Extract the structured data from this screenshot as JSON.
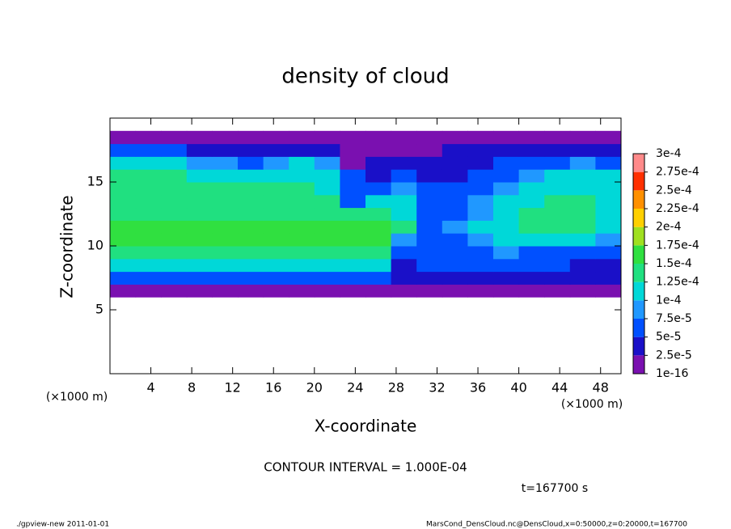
{
  "chart_data": {
    "type": "heatmap",
    "title": "density of cloud",
    "x_label": "X-coordinate",
    "y_label": "Z-coordinate",
    "x_unit": "(×1000 m)",
    "y_unit": "(×1000 m)",
    "contour_note": "CONTOUR INTERVAL = 1.000E-04",
    "time_note": "t=167700 s",
    "footer_left": "./gpview-new  2011-01-01",
    "footer_right": "MarsCond_DensCloud.nc@DensCloud,x=0:50000,z=0:20000,t=167700",
    "xlim": [
      0,
      50
    ],
    "ylim": [
      0,
      20
    ],
    "xticks": [
      4,
      8,
      12,
      16,
      20,
      24,
      28,
      32,
      36,
      40,
      44,
      48
    ],
    "yticks": [
      5,
      10,
      15
    ],
    "x": [
      1.25,
      3.75,
      6.25,
      8.75,
      11.25,
      13.75,
      16.25,
      18.75,
      21.25,
      23.75,
      26.25,
      28.75,
      31.25,
      33.75,
      36.25,
      38.75,
      41.25,
      43.75,
      46.25,
      48.75
    ],
    "y": [
      6.5,
      7.5,
      8.5,
      9.5,
      10.5,
      11.5,
      12.5,
      13.5,
      14.5,
      15.5,
      16.5,
      17.5,
      18.5
    ],
    "values": [
      [
        2e-05,
        2e-05,
        2e-05,
        2e-05,
        2e-05,
        2e-05,
        2e-05,
        2e-05,
        2e-05,
        2e-05,
        2e-05,
        1e-05,
        1e-05,
        1e-05,
        1e-05,
        1e-05,
        1e-05,
        1e-05,
        1e-05,
        1e-05
      ],
      [
        6e-05,
        6e-05,
        6e-05,
        6e-05,
        6e-05,
        6e-05,
        6e-05,
        6e-05,
        6e-05,
        6e-05,
        5e-05,
        3e-05,
        3e-05,
        4e-05,
        4e-05,
        4e-05,
        4e-05,
        4e-05,
        3e-05,
        3e-05
      ],
      [
        0.00011,
        0.00011,
        0.00011,
        0.00011,
        0.00011,
        0.00011,
        0.00011,
        0.00011,
        0.00011,
        0.00012,
        0.0001,
        4e-05,
        5e-05,
        5e-05,
        5e-05,
        6e-05,
        5e-05,
        5e-05,
        4e-05,
        4e-05
      ],
      [
        0.000145,
        0.000145,
        0.000145,
        0.000145,
        0.000145,
        0.000145,
        0.000145,
        0.000145,
        0.000145,
        0.000145,
        0.00013,
        6e-05,
        6e-05,
        6e-05,
        7e-05,
        8e-05,
        7e-05,
        7e-05,
        6e-05,
        5e-05
      ],
      [
        0.00015,
        0.00015,
        0.00015,
        0.00015,
        0.00015,
        0.00015,
        0.00015,
        0.00015,
        0.00015,
        0.00015,
        0.00015,
        9e-05,
        6e-05,
        7e-05,
        9e-05,
        0.00011,
        0.00012,
        0.00012,
        0.00011,
        8e-05
      ],
      [
        0.00015,
        0.00015,
        0.00015,
        0.00015,
        0.00015,
        0.00015,
        0.00015,
        0.00015,
        0.00015,
        0.00015,
        0.00015,
        0.00013,
        6e-05,
        8e-05,
        0.0001,
        0.00012,
        0.00013,
        0.00013,
        0.00013,
        0.00011
      ],
      [
        0.000145,
        0.000145,
        0.000145,
        0.000145,
        0.000145,
        0.000145,
        0.000145,
        0.000145,
        0.000145,
        0.00014,
        0.00013,
        0.00012,
        7e-05,
        7e-05,
        9e-05,
        0.00011,
        0.00013,
        0.000135,
        0.00013,
        0.00012
      ],
      [
        0.00014,
        0.00014,
        0.00014,
        0.00014,
        0.00014,
        0.00014,
        0.00014,
        0.00014,
        0.00013,
        7e-05,
        0.00012,
        0.00012,
        7e-05,
        6e-05,
        8e-05,
        0.0001,
        0.00012,
        0.00013,
        0.00013,
        0.00012
      ],
      [
        0.00014,
        0.00014,
        0.000135,
        0.000135,
        0.00013,
        0.00013,
        0.000125,
        0.000125,
        0.00012,
        6e-05,
        5e-05,
        9e-05,
        6e-05,
        5e-05,
        7e-05,
        9e-05,
        0.00011,
        0.00012,
        0.00012,
        0.00011
      ],
      [
        0.00013,
        0.00013,
        0.000125,
        0.00012,
        0.00012,
        0.000115,
        0.00011,
        0.00011,
        0.00011,
        5e-05,
        4e-05,
        6e-05,
        4e-05,
        4e-05,
        5e-05,
        7e-05,
        8e-05,
        0.0001,
        0.00011,
        0.0001
      ],
      [
        0.00011,
        0.000105,
        0.0001,
        9e-05,
        8e-05,
        7e-05,
        9e-05,
        0.0001,
        9e-05,
        2e-05,
        4e-05,
        3e-05,
        4e-05,
        4e-05,
        4e-05,
        5e-05,
        6e-05,
        7e-05,
        8e-05,
        7e-05
      ],
      [
        5e-05,
        5e-05,
        5e-05,
        4e-05,
        4e-05,
        3e-05,
        3e-05,
        4e-05,
        3e-05,
        1e-05,
        2e-05,
        1e-05,
        2e-05,
        3e-05,
        3e-05,
        3e-05,
        4e-05,
        3e-05,
        3e-05,
        3e-05
      ],
      [
        1e-05,
        1e-05,
        1e-05,
        1e-05,
        1e-05,
        1e-05,
        1e-05,
        1e-05,
        1e-05,
        1e-05,
        1e-05,
        1e-05,
        1e-05,
        1e-05,
        1e-05,
        1e-05,
        1e-05,
        1e-05,
        1e-05,
        1e-05
      ]
    ],
    "colorbar": {
      "ticks": [
        {
          "value": 1e-16,
          "label": "1e-16"
        },
        {
          "value": 2.5e-05,
          "label": "2.5e-5"
        },
        {
          "value": 5e-05,
          "label": "5e-5"
        },
        {
          "value": 7.5e-05,
          "label": "7.5e-5"
        },
        {
          "value": 0.0001,
          "label": "1e-4"
        },
        {
          "value": 0.000125,
          "label": "1.25e-4"
        },
        {
          "value": 0.00015,
          "label": "1.5e-4"
        },
        {
          "value": 0.000175,
          "label": "1.75e-4"
        },
        {
          "value": 0.0002,
          "label": "2e-4"
        },
        {
          "value": 0.000225,
          "label": "2.25e-4"
        },
        {
          "value": 0.00025,
          "label": "2.5e-4"
        },
        {
          "value": 0.000275,
          "label": "2.75e-4"
        },
        {
          "value": 0.0003,
          "label": "3e-4"
        }
      ],
      "colors": [
        "#7a10b0",
        "#1a10c8",
        "#0050ff",
        "#2098ff",
        "#00d8d8",
        "#20e080",
        "#30e040",
        "#a0e020",
        "#ffd000",
        "#ff9000",
        "#ff3000",
        "#ff8a8a"
      ]
    }
  }
}
